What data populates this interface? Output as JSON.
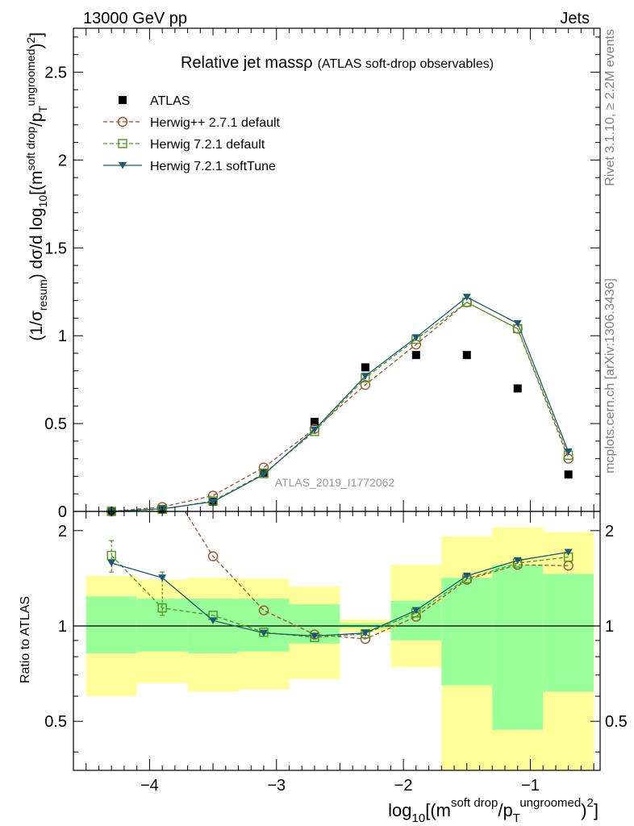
{
  "header": {
    "left": "13000 GeV pp",
    "right": "Jets"
  },
  "side_texts": {
    "rivet": "Rivet 3.1.10, ≥ 2.2M events",
    "mcplots": "mcplots.cern.ch [arXiv:1306.3436]"
  },
  "chart_data": [
    {
      "type": "scatter",
      "panel": "main",
      "title": "Relative jet massρ",
      "subtitle": "(ATLAS soft-drop observables)",
      "watermark": "ATLAS_2019_I1772062",
      "xlabel": "log10[(m^(soft drop)/pT^(ungroomed))^2]",
      "ylabel": "(1/σresum) dσ/d log10[(m^(soft drop)/pT^(ungroomed))^2]",
      "xlim": [
        -4.6,
        -0.45
      ],
      "ylim": [
        0,
        2.75
      ],
      "yticks": [
        "0",
        "0.5",
        "1",
        "1.5",
        "2",
        "2.5"
      ],
      "xticks": [
        "−4",
        "−3",
        "−2",
        "−1"
      ],
      "x": [
        -4.3,
        -3.9,
        -3.5,
        -3.1,
        -2.7,
        -2.3,
        -1.9,
        -1.5,
        -1.1,
        -0.7
      ],
      "series": [
        {
          "name": "ATLAS",
          "color": "#000000",
          "marker": "square-filled",
          "line": "none",
          "values": [
            0.0,
            0.01,
            0.055,
            0.22,
            0.51,
            0.82,
            0.89,
            0.89,
            0.7,
            0.21
          ]
        },
        {
          "name": "Herwig++ 2.7.1 default",
          "color": "#a0522d",
          "marker": "circle-open",
          "line": "dashed",
          "values": [
            0.0,
            0.025,
            0.09,
            0.25,
            0.47,
            0.72,
            0.95,
            1.19,
            1.04,
            0.3
          ]
        },
        {
          "name": "Herwig 7.2.1 default",
          "color": "#4a9a1c",
          "marker": "square-open",
          "line": "dashed",
          "values": [
            0.0,
            0.012,
            0.06,
            0.215,
            0.455,
            0.76,
            0.98,
            1.19,
            1.04,
            0.32
          ]
        },
        {
          "name": "Herwig 7.2.1 softTune",
          "color": "#1b5a72",
          "marker": "triangle-down",
          "line": "solid",
          "values": [
            0.0,
            0.015,
            0.055,
            0.21,
            0.465,
            0.77,
            0.99,
            1.22,
            1.07,
            0.34
          ]
        }
      ]
    },
    {
      "type": "line",
      "panel": "ratio",
      "ylabel": "Ratio to ATLAS",
      "ylim": [
        0.35,
        2.3
      ],
      "yticks": [
        "0.5",
        "1",
        "2"
      ],
      "bands": {
        "edges": [
          -4.5,
          -4.1,
          -3.7,
          -3.3,
          -2.9,
          -2.5,
          -2.1,
          -1.7,
          -1.3,
          -0.9,
          -0.5
        ],
        "yellow_low": [
          0.6,
          0.66,
          0.62,
          0.63,
          0.68,
          0.955,
          0.74,
          0.35,
          0.35,
          0.35
        ],
        "yellow_high": [
          1.44,
          1.4,
          1.42,
          1.41,
          1.33,
          1.05,
          1.56,
          1.92,
          2.05,
          1.98
        ],
        "green_low": [
          0.82,
          0.83,
          0.82,
          0.83,
          0.88,
          0.985,
          0.9,
          0.65,
          0.47,
          0.62
        ],
        "green_high": [
          1.24,
          1.22,
          1.22,
          1.22,
          1.17,
          1.02,
          1.2,
          1.42,
          1.56,
          1.46
        ]
      },
      "x": [
        -4.3,
        -3.9,
        -3.5,
        -3.1,
        -2.7,
        -2.3,
        -1.9,
        -1.5,
        -1.1,
        -0.7
      ],
      "series": [
        {
          "name": "Herwig++ 2.7.1 default",
          "color": "#a0522d",
          "marker": "circle-open",
          "line": "dashed",
          "values": [
            null,
            3.0,
            1.66,
            1.12,
            0.94,
            0.91,
            1.07,
            1.4,
            1.56,
            1.55
          ]
        },
        {
          "name": "Herwig 7.2.1 default",
          "color": "#4a9a1c",
          "marker": "square-open",
          "line": "dashed",
          "values": [
            1.67,
            1.14,
            1.08,
            0.955,
            0.92,
            0.945,
            1.1,
            1.41,
            1.58,
            1.65
          ]
        },
        {
          "name": "Herwig 7.2.1 softTune",
          "color": "#1b5a72",
          "marker": "triangle-down",
          "line": "solid",
          "values": [
            1.58,
            1.42,
            1.04,
            0.95,
            0.93,
            0.95,
            1.12,
            1.44,
            1.61,
            1.71
          ]
        }
      ],
      "errors": {
        "x_index": [
          0,
          1
        ],
        "low": [
          1.48,
          1.08
        ],
        "high": [
          1.86,
          1.48
        ]
      }
    }
  ]
}
